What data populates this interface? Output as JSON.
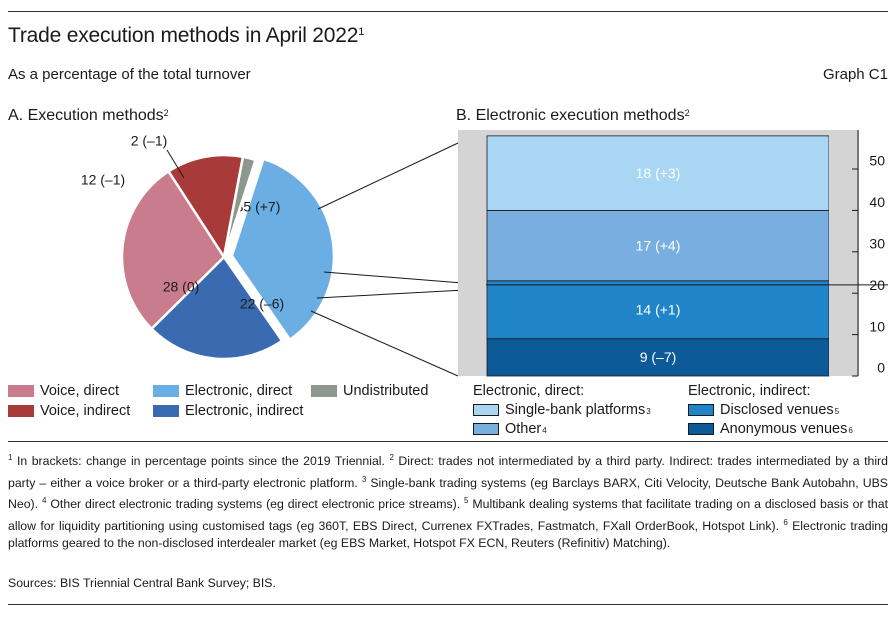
{
  "title": "Trade execution methods in April 2022",
  "title_note": "1",
  "subtitle": "As a percentage of the total turnover",
  "graph_id": "Graph C1",
  "colors": {
    "voice_direct": "#c97d8c",
    "voice_indirect": "#a83a3a",
    "electronic_direct": "#6aaee3",
    "electronic_indirect": "#3a6bb0",
    "undistributed": "#8e9690",
    "single_bank": "#a9d6f3",
    "other": "#79aee0",
    "disclosed": "#1f85c8",
    "anonymous": "#0d5a98",
    "panel_bg": "#d4d4d4"
  },
  "chart_data": [
    {
      "type": "pie",
      "panel_title": "A. Execution methods",
      "panel_note": "2",
      "slices": [
        {
          "name": "Electronic, direct",
          "value": 35,
          "label": "35 (+7)",
          "color_key": "electronic_direct",
          "explode": true
        },
        {
          "name": "Electronic, indirect",
          "value": 22,
          "label": "22 (–6)",
          "color_key": "electronic_indirect",
          "explode": false
        },
        {
          "name": "Voice, direct",
          "value": 28,
          "label": "28 (0)",
          "color_key": "voice_direct",
          "explode": false
        },
        {
          "name": "Voice, indirect",
          "value": 12,
          "label": "12 (–1)",
          "color_key": "voice_indirect",
          "explode": false
        },
        {
          "name": "Undistributed",
          "value": 2,
          "label": "2 (–1)",
          "color_key": "undistributed",
          "explode": false
        }
      ]
    },
    {
      "type": "bar",
      "stacked": true,
      "panel_title": "B. Electronic execution methods",
      "panel_note": "2",
      "ylim": [
        0,
        58
      ],
      "yticks": [
        0,
        10,
        20,
        30,
        40,
        50
      ],
      "ytick_labels": [
        "0",
        "10",
        "20",
        "30",
        "40",
        "50"
      ],
      "axis_side": "right",
      "series": [
        {
          "name": "Anonymous venues",
          "value": 9,
          "label": "9 (–7)",
          "color_key": "anonymous"
        },
        {
          "name": "Disclosed venues",
          "value": 14,
          "label": "14 (+1)",
          "color_key": "disclosed"
        },
        {
          "name": "Other",
          "value": 17,
          "label": "17 (+4)",
          "color_key": "other"
        },
        {
          "name": "Single-bank platforms",
          "value": 18,
          "label": "18 (+3)",
          "color_key": "single_bank"
        }
      ],
      "divider_at": 22
    }
  ],
  "legend_a": [
    {
      "label": "Voice, direct",
      "color_key": "voice_direct"
    },
    {
      "label": "Electronic, direct",
      "color_key": "electronic_direct"
    },
    {
      "label": "Undistributed",
      "color_key": "undistributed"
    },
    {
      "label": "Voice, indirect",
      "color_key": "voice_indirect"
    },
    {
      "label": "Electronic, indirect",
      "color_key": "electronic_indirect"
    }
  ],
  "legend_b": {
    "direct_head": "Electronic, direct:",
    "indirect_head": "Electronic, indirect:",
    "items": [
      {
        "label": "Single-bank platforms",
        "note": "3",
        "color_key": "single_bank"
      },
      {
        "label": "Other",
        "note": "4",
        "color_key": "other"
      },
      {
        "label": "Disclosed venues",
        "note": "5",
        "color_key": "disclosed"
      },
      {
        "label": "Anonymous venues",
        "note": "6",
        "color_key": "anonymous"
      }
    ]
  },
  "footnotes": [
    {
      "n": "1",
      "text": " In brackets: change in percentage points since the 2019 Triennial. "
    },
    {
      "n": "2",
      "text": " Direct: trades not intermediated by a third party. Indirect: trades intermediated by a third party – either a voice broker or a third-party electronic platform. "
    },
    {
      "n": "3",
      "text": " Single-bank trading systems (eg Barclays BARX, Citi Velocity, Deutsche Bank Autobahn, UBS Neo). "
    },
    {
      "n": "4",
      "text": " Other direct electronic trading systems (eg direct electronic price streams). "
    },
    {
      "n": "5",
      "text": " Multibank dealing systems that facilitate trading on a disclosed basis or that allow for liquidity partitioning using customised tags (eg 360T, EBS Direct, Currenex FXTrades, Fastmatch, FXall OrderBook, Hotspot Link). "
    },
    {
      "n": "6",
      "text": " Electronic trading platforms geared to the non-disclosed interdealer market (eg EBS Market, Hotspot FX ECN, Reuters (Refinitiv) Matching)."
    }
  ],
  "sources": "Sources: BIS Triennial Central Bank Survey; BIS."
}
